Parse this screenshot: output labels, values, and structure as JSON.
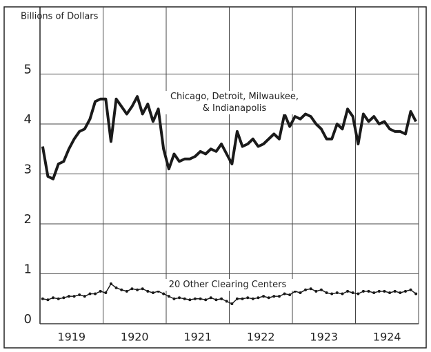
{
  "chart_data": {
    "type": "line",
    "y_label": "Billions of Dollars",
    "categories": [
      "1919",
      "1920",
      "1921",
      "1922",
      "1923",
      "1924"
    ],
    "xlim": [
      1919,
      1925
    ],
    "ylim": [
      0,
      6
    ],
    "yticks": [
      0,
      1,
      2,
      3,
      4,
      5
    ],
    "grid": true,
    "x": [
      1919.042,
      1919.125,
      1919.208,
      1919.292,
      1919.375,
      1919.458,
      1919.542,
      1919.625,
      1919.708,
      1919.792,
      1919.875,
      1919.958,
      1920.042,
      1920.125,
      1920.208,
      1920.292,
      1920.375,
      1920.458,
      1920.542,
      1920.625,
      1920.708,
      1920.792,
      1920.875,
      1920.958,
      1921.042,
      1921.125,
      1921.208,
      1921.292,
      1921.375,
      1921.458,
      1921.542,
      1921.625,
      1921.708,
      1921.792,
      1921.875,
      1921.958,
      1922.042,
      1922.125,
      1922.208,
      1922.292,
      1922.375,
      1922.458,
      1922.542,
      1922.625,
      1922.708,
      1922.792,
      1922.875,
      1922.958,
      1923.042,
      1923.125,
      1923.208,
      1923.292,
      1923.375,
      1923.458,
      1923.542,
      1923.625,
      1923.708,
      1923.792,
      1923.875,
      1923.958,
      1924.042,
      1924.125,
      1924.208,
      1924.292,
      1924.375,
      1924.458,
      1924.542,
      1924.625,
      1924.708,
      1924.792,
      1924.875,
      1924.958
    ],
    "series": [
      {
        "name": "Chicago, Detroit, Milwaukee, & Indianapolis",
        "color": "#1a1a1a",
        "width": 4,
        "values": [
          3.55,
          2.95,
          2.9,
          3.2,
          3.25,
          3.5,
          3.7,
          3.85,
          3.9,
          4.1,
          4.45,
          4.5,
          4.5,
          3.65,
          4.5,
          4.35,
          4.2,
          4.35,
          4.55,
          4.2,
          4.4,
          4.05,
          4.3,
          3.5,
          3.1,
          3.4,
          3.25,
          3.3,
          3.3,
          3.35,
          3.45,
          3.4,
          3.5,
          3.45,
          3.6,
          3.4,
          3.2,
          3.85,
          3.55,
          3.6,
          3.7,
          3.55,
          3.6,
          3.7,
          3.8,
          3.7,
          4.2,
          3.95,
          4.15,
          4.1,
          4.2,
          4.15,
          4.0,
          3.9,
          3.7,
          3.7,
          4.0,
          3.9,
          4.3,
          4.15,
          3.6,
          4.2,
          4.05,
          4.15,
          4.0,
          4.05,
          3.9,
          3.85,
          3.85,
          3.8,
          4.25,
          4.05
        ]
      },
      {
        "name": "20 Other Clearing Centers",
        "color": "#1a1a1a",
        "width": 1.5,
        "markers": true,
        "values": [
          0.5,
          0.48,
          0.52,
          0.5,
          0.52,
          0.55,
          0.55,
          0.58,
          0.55,
          0.6,
          0.6,
          0.65,
          0.62,
          0.8,
          0.72,
          0.68,
          0.65,
          0.7,
          0.68,
          0.7,
          0.65,
          0.62,
          0.65,
          0.6,
          0.55,
          0.5,
          0.52,
          0.5,
          0.48,
          0.5,
          0.5,
          0.48,
          0.52,
          0.48,
          0.5,
          0.45,
          0.4,
          0.5,
          0.5,
          0.52,
          0.5,
          0.52,
          0.55,
          0.52,
          0.55,
          0.55,
          0.6,
          0.58,
          0.65,
          0.62,
          0.68,
          0.7,
          0.65,
          0.68,
          0.62,
          0.6,
          0.62,
          0.6,
          0.65,
          0.62,
          0.6,
          0.65,
          0.65,
          0.62,
          0.65,
          0.65,
          0.62,
          0.65,
          0.62,
          0.65,
          0.68,
          0.6
        ]
      }
    ]
  }
}
